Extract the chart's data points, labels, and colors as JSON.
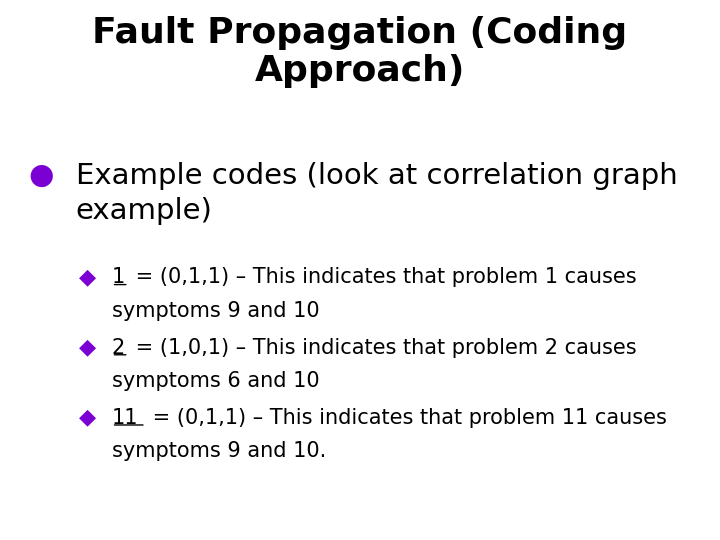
{
  "title_line1": "Fault Propagation (Coding",
  "title_line2": "Approach)",
  "background_color": "#ffffff",
  "title_color": "#000000",
  "title_fontsize": 26,
  "title_fontweight": "bold",
  "bullet_color": "#7B00D4",
  "bullet_text_line1": "Example codes (look at correlation graph",
  "bullet_text_line2": "example)",
  "bullet_fontsize": 21,
  "sub_bullet_color": "#7B00D4",
  "sub_bullets": [
    {
      "label": "1",
      "text_line1": " = (0,1,1) – This indicates that problem 1 causes",
      "text_line2": "symptoms 9 and 10"
    },
    {
      "label": "2",
      "text_line1": " = (1,0,1) – This indicates that problem 2 causes",
      "text_line2": "symptoms 6 and 10"
    },
    {
      "label": "11",
      "text_line1": " = (0,1,1) – This indicates that problem 11 causes",
      "text_line2": "symptoms 9 and 10."
    }
  ],
  "sub_bullet_fontsize": 15
}
